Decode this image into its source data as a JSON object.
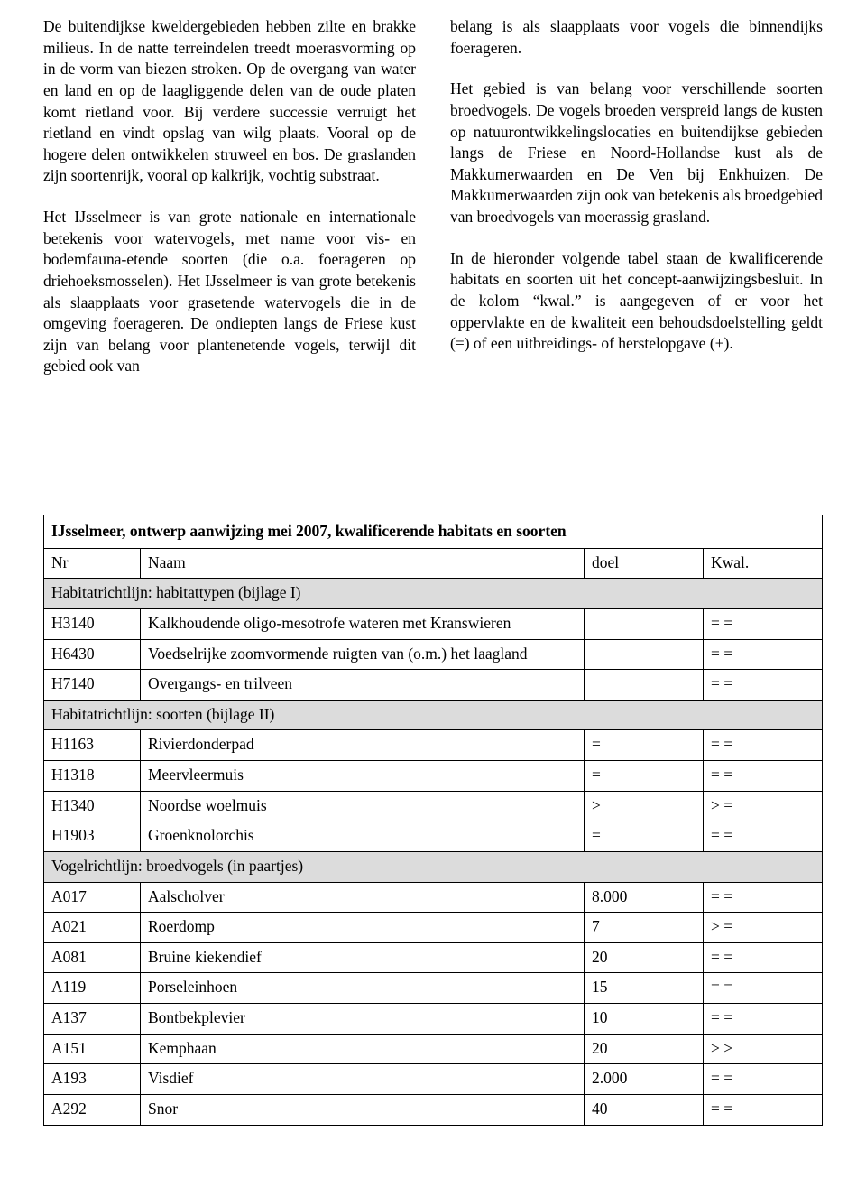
{
  "text": {
    "col1_p1": "De buitendijkse kweldergebieden hebben zilte en brakke milieus. In de natte terreindelen treedt moerasvorming op in de vorm van biezen stroken. Op de overgang van water en land en op de laagliggende delen van de oude platen komt rietland voor. Bij verdere successie verruigt het rietland en vindt opslag van wilg plaats. Vooral op de hogere delen ontwikkelen struweel en bos. De graslanden zijn soortenrijk, vooral op kalkrijk, vochtig substraat.",
    "col1_p2": "Het IJsselmeer is van grote nationale en internationale betekenis voor watervogels, met name voor vis- en bodemfauna-etende soorten (die o.a. foerageren op driehoeksmosselen). Het IJsselmeer is van grote betekenis als slaapplaats voor grasetende watervogels die in de omgeving foerageren. De ondiepten langs de Friese kust zijn van belang voor plantenetende vogels, terwijl dit gebied ook van",
    "col2_p1": "belang is als slaapplaats voor vogels die binnendijks foerageren.",
    "col2_p2": "Het gebied is van belang voor verschillende soorten broedvogels. De vogels broeden verspreid langs de kusten op natuurontwikkelingslocaties en buitendijkse gebieden langs de Friese en Noord-Hollandse kust als de Makkumerwaarden en De Ven bij Enkhuizen. De Makkumerwaarden zijn ook van betekenis als broedgebied van broedvogels van moerassig grasland.",
    "col2_p3": "In de hieronder volgende tabel staan de kwalificerende habitats en soorten uit het concept-aanwijzingsbesluit. In de kolom “kwal.” is aangegeven of er voor het oppervlakte en de kwaliteit een behoudsdoelstelling geldt (=) of een uitbreidings- of herstelopgave (+)."
  },
  "table": {
    "title": "IJsselmeer, ontwerp aanwijzing mei 2007, kwalificerende habitats en soorten",
    "headers": {
      "nr": "Nr",
      "naam": "Naam",
      "doel": "doel",
      "kwal": "Kwal."
    },
    "sections": {
      "s1": "Habitatrichtlijn: habitattypen (bijlage I)",
      "s2": "Habitatrichtlijn: soorten (bijlage II)",
      "s3": "Vogelrichtlijn: broedvogels (in paartjes)"
    },
    "rows": {
      "r1": {
        "nr": "H3140",
        "naam": "Kalkhoudende oligo-mesotrofe wateren met Kranswieren",
        "doel": "",
        "kwal": "= ="
      },
      "r2": {
        "nr": "H6430",
        "naam": "Voedselrijke zoomvormende ruigten van (o.m.) het laagland",
        "doel": "",
        "kwal": "= ="
      },
      "r3": {
        "nr": "H7140",
        "naam": "Overgangs- en trilveen",
        "doel": "",
        "kwal": "= ="
      },
      "r4": {
        "nr": "H1163",
        "naam": "Rivierdonderpad",
        "doel": "=",
        "kwal": "= ="
      },
      "r5": {
        "nr": "H1318",
        "naam": "Meervleermuis",
        "doel": "=",
        "kwal": "= ="
      },
      "r6": {
        "nr": "H1340",
        "naam": "Noordse woelmuis",
        "doel": ">",
        "kwal": "> ="
      },
      "r7": {
        "nr": "H1903",
        "naam": "Groenknolorchis",
        "doel": "=",
        "kwal": "= ="
      },
      "r8": {
        "nr": "A017",
        "naam": "Aalscholver",
        "doel": "8.000",
        "kwal": "= ="
      },
      "r9": {
        "nr": "A021",
        "naam": "Roerdomp",
        "doel": "7",
        "kwal": "> ="
      },
      "r10": {
        "nr": "A081",
        "naam": "Bruine kiekendief",
        "doel": "20",
        "kwal": "= ="
      },
      "r11": {
        "nr": "A119",
        "naam": "Porseleinhoen",
        "doel": "15",
        "kwal": "= ="
      },
      "r12": {
        "nr": "A137",
        "naam": "Bontbekplevier",
        "doel": "10",
        "kwal": "= ="
      },
      "r13": {
        "nr": "A151",
        "naam": "Kemphaan",
        "doel": "20",
        "kwal": "> >"
      },
      "r14": {
        "nr": "A193",
        "naam": "Visdief",
        "doel": "2.000",
        "kwal": "= ="
      },
      "r15": {
        "nr": "A292",
        "naam": "Snor",
        "doel": "40",
        "kwal": "= ="
      }
    }
  }
}
